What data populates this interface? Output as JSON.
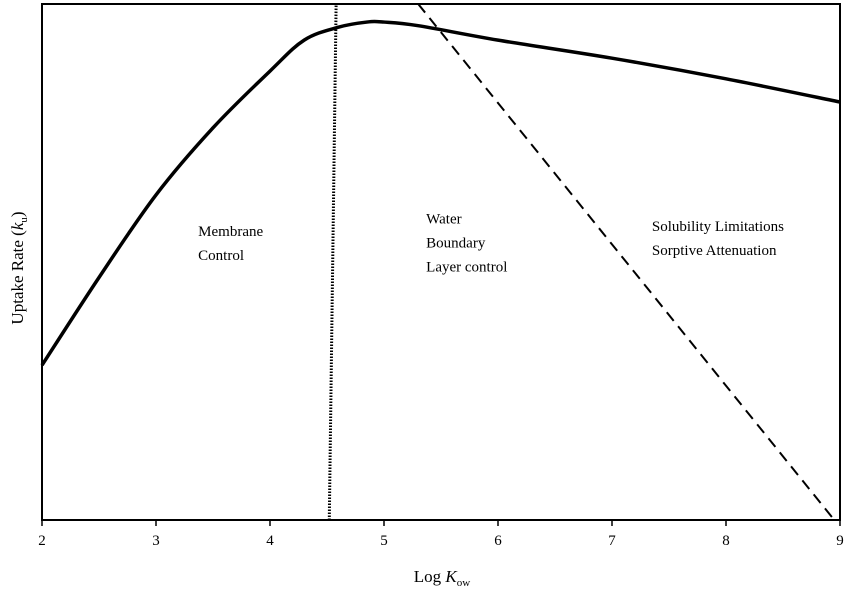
{
  "chart_data": {
    "type": "line",
    "title": "",
    "xlabel": {
      "prefix": "Log ",
      "variable": "K",
      "subscript": "ow"
    },
    "ylabel": {
      "prefix": "Uptake Rate (",
      "variable": "k",
      "subscript": "u",
      "suffix": ")"
    },
    "xlim": [
      2,
      9
    ],
    "xticks": [
      "2",
      "3",
      "4",
      "5",
      "6",
      "7",
      "8",
      "9"
    ],
    "yticks": [],
    "grid": false,
    "legend": "none",
    "series": [
      {
        "style": "solid",
        "x": [
          2.0,
          2.5,
          3.0,
          3.5,
          4.0,
          4.3,
          4.6,
          4.85,
          5.0,
          5.3,
          6.0,
          7.0,
          8.0,
          9.0
        ],
        "y": [
          0.3,
          0.47,
          0.63,
          0.76,
          0.87,
          0.93,
          0.955,
          0.965,
          0.965,
          0.958,
          0.93,
          0.895,
          0.855,
          0.81
        ]
      },
      {
        "style": "dotted",
        "x": [
          4.52,
          4.58
        ],
        "y": [
          0.0,
          1.0
        ]
      },
      {
        "style": "dashed",
        "x": [
          5.3,
          8.95
        ],
        "y": [
          1.0,
          0.0
        ]
      }
    ],
    "annotations": [
      {
        "id": "membrane",
        "lines": [
          "Membrane",
          "Control"
        ],
        "x": 3.37,
        "y": 0.55
      },
      {
        "id": "water",
        "lines": [
          "Water",
          "Boundary",
          "Layer control"
        ],
        "x": 5.37,
        "y": 0.575
      },
      {
        "id": "solubility",
        "lines": [
          "Solubility Limitations",
          "Sorptive Attenuation"
        ],
        "x": 7.35,
        "y": 0.56
      }
    ]
  }
}
